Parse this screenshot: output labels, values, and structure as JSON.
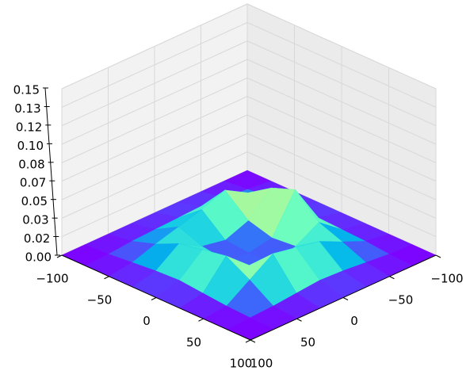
{
  "chart_data": {
    "type": "surface3d",
    "colormap": "rainbow",
    "x": [
      -100,
      -75,
      -50,
      -25,
      0,
      25,
      50,
      75,
      100
    ],
    "y": [
      -100,
      -75,
      -50,
      -25,
      0,
      25,
      50,
      75,
      100
    ],
    "z": [
      [
        0,
        0,
        0,
        0,
        0,
        0,
        0,
        0,
        0
      ],
      [
        0,
        0.002,
        0.004,
        0.006,
        0.005,
        0.004,
        0.003,
        0.001,
        0
      ],
      [
        0,
        0.004,
        0.018,
        0.03,
        0.022,
        0.016,
        0.01,
        0.003,
        0
      ],
      [
        0,
        0.006,
        0.032,
        0.012,
        0.004,
        0.008,
        0.02,
        0.005,
        0
      ],
      [
        0,
        0.005,
        0.04,
        0.006,
        0.002,
        0.005,
        0.024,
        0.006,
        0
      ],
      [
        0,
        0.004,
        0.02,
        0.008,
        0.003,
        0.01,
        0.028,
        0.004,
        0
      ],
      [
        0,
        0.003,
        0.012,
        0.022,
        0.026,
        0.03,
        0.016,
        0.002,
        0
      ],
      [
        0,
        0.001,
        0.003,
        0.005,
        0.006,
        0.004,
        0.002,
        0.001,
        0
      ],
      [
        0,
        0,
        0,
        0,
        0,
        0,
        0,
        0,
        0
      ]
    ],
    "xlim": [
      -100,
      100
    ],
    "ylim": [
      -100,
      100
    ],
    "zlim": [
      0,
      0.15
    ],
    "xticks": [
      {
        "value": -100,
        "label": "−100"
      },
      {
        "value": -50,
        "label": "−50"
      },
      0,
      50,
      100
    ],
    "yticks": [
      {
        "value": -100,
        "label": "−100"
      },
      {
        "value": -50,
        "label": "−50"
      },
      0,
      50,
      100
    ],
    "zticks": [
      {
        "value": 0,
        "label": "0.00"
      },
      {
        "value": 0.0167,
        "label": "0.02"
      },
      {
        "value": 0.0333,
        "label": "0.03"
      },
      {
        "value": 0.05,
        "label": "0.05"
      },
      {
        "value": 0.0667,
        "label": "0.07"
      },
      {
        "value": 0.0833,
        "label": "0.08"
      },
      {
        "value": 0.1,
        "label": "0.10"
      },
      {
        "value": 0.1167,
        "label": "0.12"
      },
      {
        "value": 0.1333,
        "label": "0.13"
      },
      {
        "value": 0.15,
        "label": "0.15"
      }
    ],
    "grid": true
  }
}
